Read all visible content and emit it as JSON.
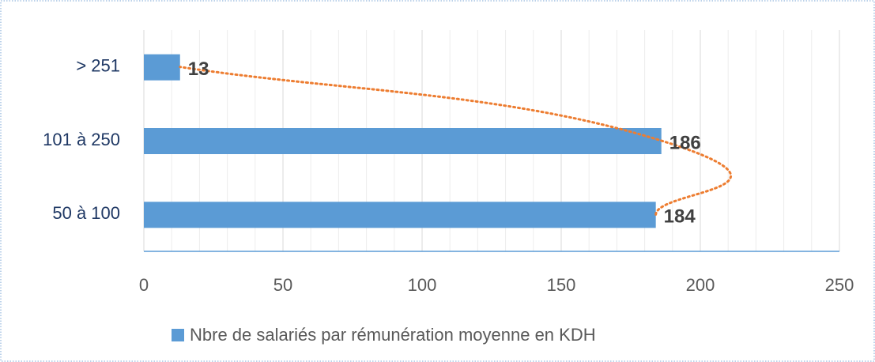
{
  "chart_data": {
    "type": "barh",
    "categories": [
      "50 à 100",
      "101 à 250",
      "> 251"
    ],
    "series": [
      {
        "name": "Nbre de salariés par rémunération moyenne en KDH",
        "color": "#5b9bd5",
        "values": [
          184,
          186,
          13
        ]
      }
    ],
    "trendline": {
      "color": "#ed7d31",
      "style": "dotted",
      "smooth": true
    },
    "xlim": [
      0,
      250
    ],
    "xticks": [
      0,
      50,
      100,
      150,
      200,
      250
    ],
    "xminorticks": [
      10,
      20,
      30,
      40,
      60,
      70,
      80,
      90,
      110,
      120,
      130,
      140,
      160,
      170,
      180,
      190,
      210,
      220,
      230,
      240
    ],
    "grid": true,
    "legend": "bottom"
  }
}
